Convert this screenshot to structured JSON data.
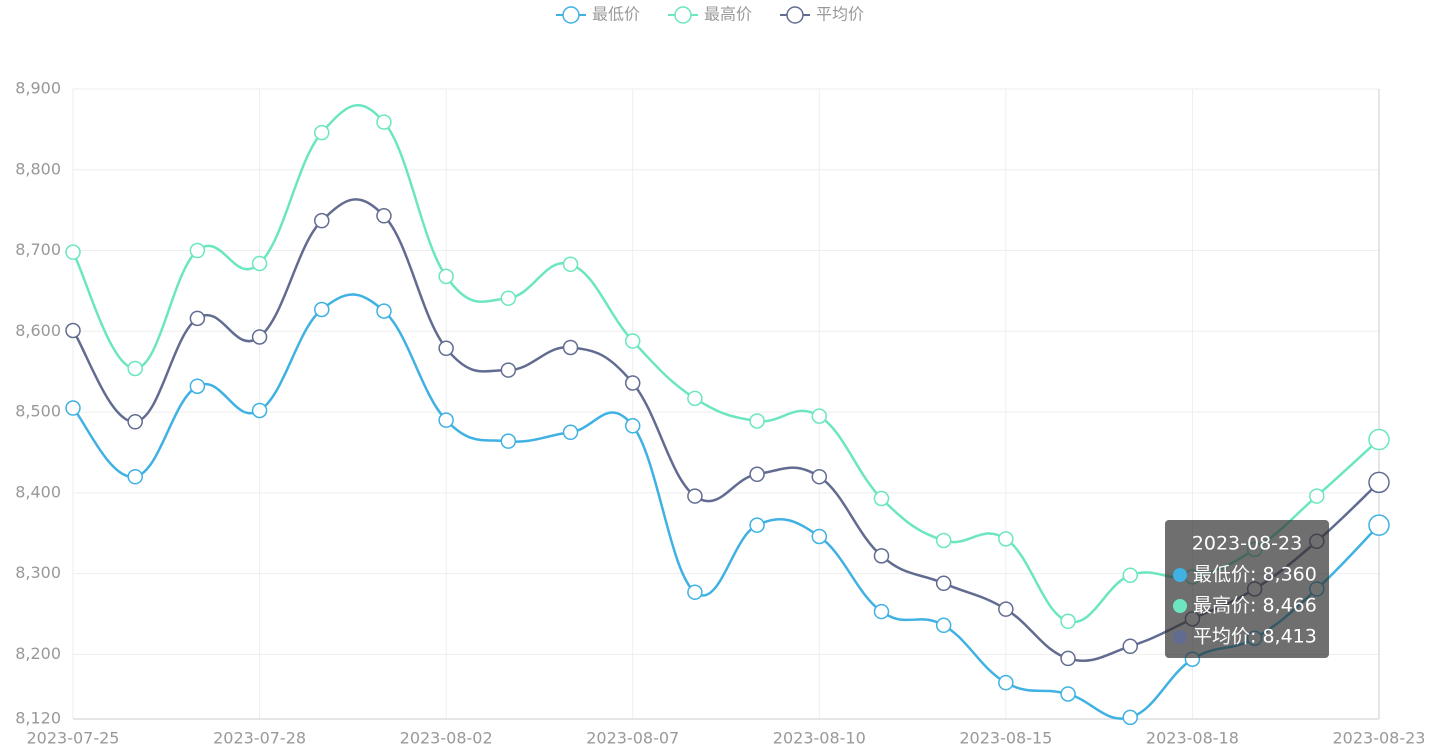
{
  "chart_data": {
    "type": "line",
    "categories": [
      "2023-07-25",
      null,
      null,
      "2023-07-28",
      null,
      null,
      "2023-08-02",
      null,
      null,
      "2023-08-07",
      null,
      null,
      "2023-08-10",
      null,
      null,
      "2023-08-15",
      null,
      null,
      "2023-08-18",
      null,
      null,
      "2023-08-23"
    ],
    "series": [
      {
        "name": "最低价",
        "color": "#3fb1e3",
        "values": [
          8505,
          8420,
          8532,
          8502,
          8627,
          8625,
          8490,
          8464,
          8475,
          8483,
          8277,
          8360,
          8346,
          8253,
          8236,
          8165,
          8151,
          8122,
          8194,
          8220,
          8281,
          8360
        ]
      },
      {
        "name": "最高价",
        "color": "#6be6c1",
        "values": [
          8698,
          8554,
          8700,
          8684,
          8846,
          8859,
          8668,
          8641,
          8683,
          8588,
          8517,
          8489,
          8495,
          8393,
          8341,
          8343,
          8241,
          8298,
          8296,
          8330,
          8396,
          8466
        ]
      },
      {
        "name": "平均价",
        "color": "#626c91",
        "values": [
          8601,
          8488,
          8616,
          8593,
          8737,
          8743,
          8579,
          8552,
          8580,
          8536,
          8396,
          8423,
          8420,
          8322,
          8288,
          8256,
          8195,
          8210,
          8244,
          8281,
          8340,
          8413
        ]
      }
    ],
    "ylim": [
      8120,
      8900
    ],
    "yticks": [
      {
        "value": 8120,
        "label": "8,120"
      },
      {
        "value": 8200,
        "label": "8,200"
      },
      {
        "value": 8300,
        "label": "8,300"
      },
      {
        "value": 8400,
        "label": "8,400"
      },
      {
        "value": 8500,
        "label": "8,500"
      },
      {
        "value": 8600,
        "label": "8,600"
      },
      {
        "value": 8700,
        "label": "8,700"
      },
      {
        "value": 8800,
        "label": "8,800"
      },
      {
        "value": 8900,
        "label": "8,900"
      }
    ],
    "grid": true,
    "smooth": true,
    "legend": "top",
    "tooltip": [
      "最低价: 8,360",
      "最高价: 8,466",
      "平均价: 8,413"
    ]
  }
}
